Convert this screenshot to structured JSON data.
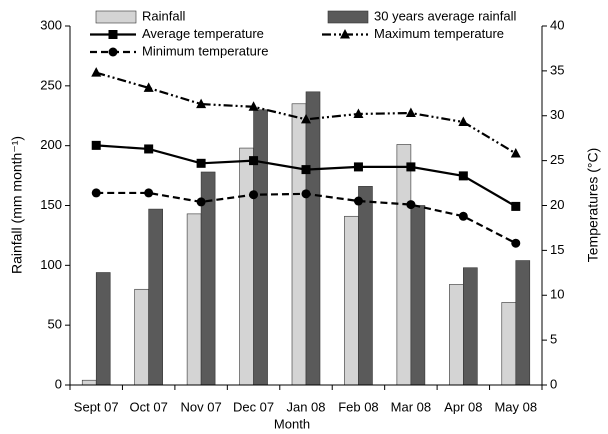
{
  "chart_data": {
    "type": "bar",
    "categories": [
      "Sept 07",
      "Oct 07",
      "Nov 07",
      "Dec 07",
      "Jan 08",
      "Feb 08",
      "Mar 08",
      "Apr 08",
      "May 08"
    ],
    "x_label": "Month",
    "y_label": "Rainfall (mm month⁻¹)",
    "y2_label": "Temperatures (°C)",
    "ylim": [
      0,
      300
    ],
    "yticks": [
      0,
      50,
      100,
      150,
      200,
      250,
      300
    ],
    "y2lim": [
      0,
      40
    ],
    "y2ticks": [
      0,
      5,
      10,
      15,
      20,
      25,
      30,
      35,
      40
    ],
    "series": [
      {
        "name": "Rainfall",
        "type": "bar",
        "color": "#d4d4d4",
        "values": [
          4,
          80,
          143,
          198,
          235,
          141,
          201,
          84,
          69
        ]
      },
      {
        "name": "30 years average rainfall",
        "type": "bar",
        "color": "#5a5a5a",
        "values": [
          94,
          147,
          178,
          230,
          245,
          166,
          150,
          98,
          104
        ]
      },
      {
        "name": "Average temperature",
        "type": "line",
        "axis": "y2",
        "color": "#000000",
        "marker": "square",
        "dash": "solid",
        "values": [
          26.7,
          26.3,
          24.7,
          25.0,
          24.0,
          24.3,
          24.3,
          23.3,
          19.9
        ]
      },
      {
        "name": "Maximum temperature",
        "type": "line",
        "axis": "y2",
        "color": "#000000",
        "marker": "triangle",
        "dash": "dash-dot-dot",
        "values": [
          34.8,
          33.1,
          31.3,
          31.0,
          29.6,
          30.2,
          30.3,
          29.3,
          25.8
        ]
      },
      {
        "name": "Minimum temperature",
        "type": "line",
        "axis": "y2",
        "color": "#000000",
        "marker": "circle",
        "dash": "dashed",
        "values": [
          21.4,
          21.4,
          20.4,
          21.2,
          21.3,
          20.5,
          20.1,
          18.8,
          15.8
        ]
      }
    ]
  }
}
